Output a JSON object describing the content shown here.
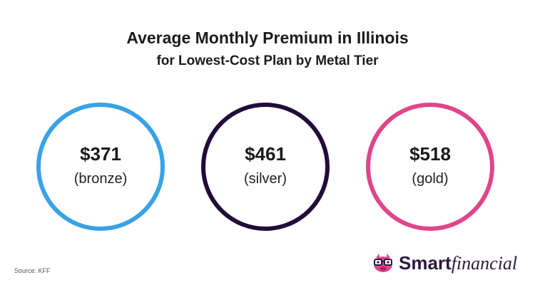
{
  "title": "Average Monthly Premium in Illinois",
  "subtitle": "for Lowest-Cost Plan by Metal Tier",
  "tiers": [
    {
      "amount": "$371",
      "label": "(bronze)",
      "color": "#39a2e6"
    },
    {
      "amount": "$461",
      "label": "(silver)",
      "color": "#220c3a"
    },
    {
      "amount": "$518",
      "label": "(gold)",
      "color": "#e0458a"
    }
  ],
  "source": "Source: KFF",
  "logo": {
    "smart": "Smart",
    "financial": "financial",
    "icon": "piggy-bank-glasses-icon",
    "icon_color": "#e0458a"
  }
}
